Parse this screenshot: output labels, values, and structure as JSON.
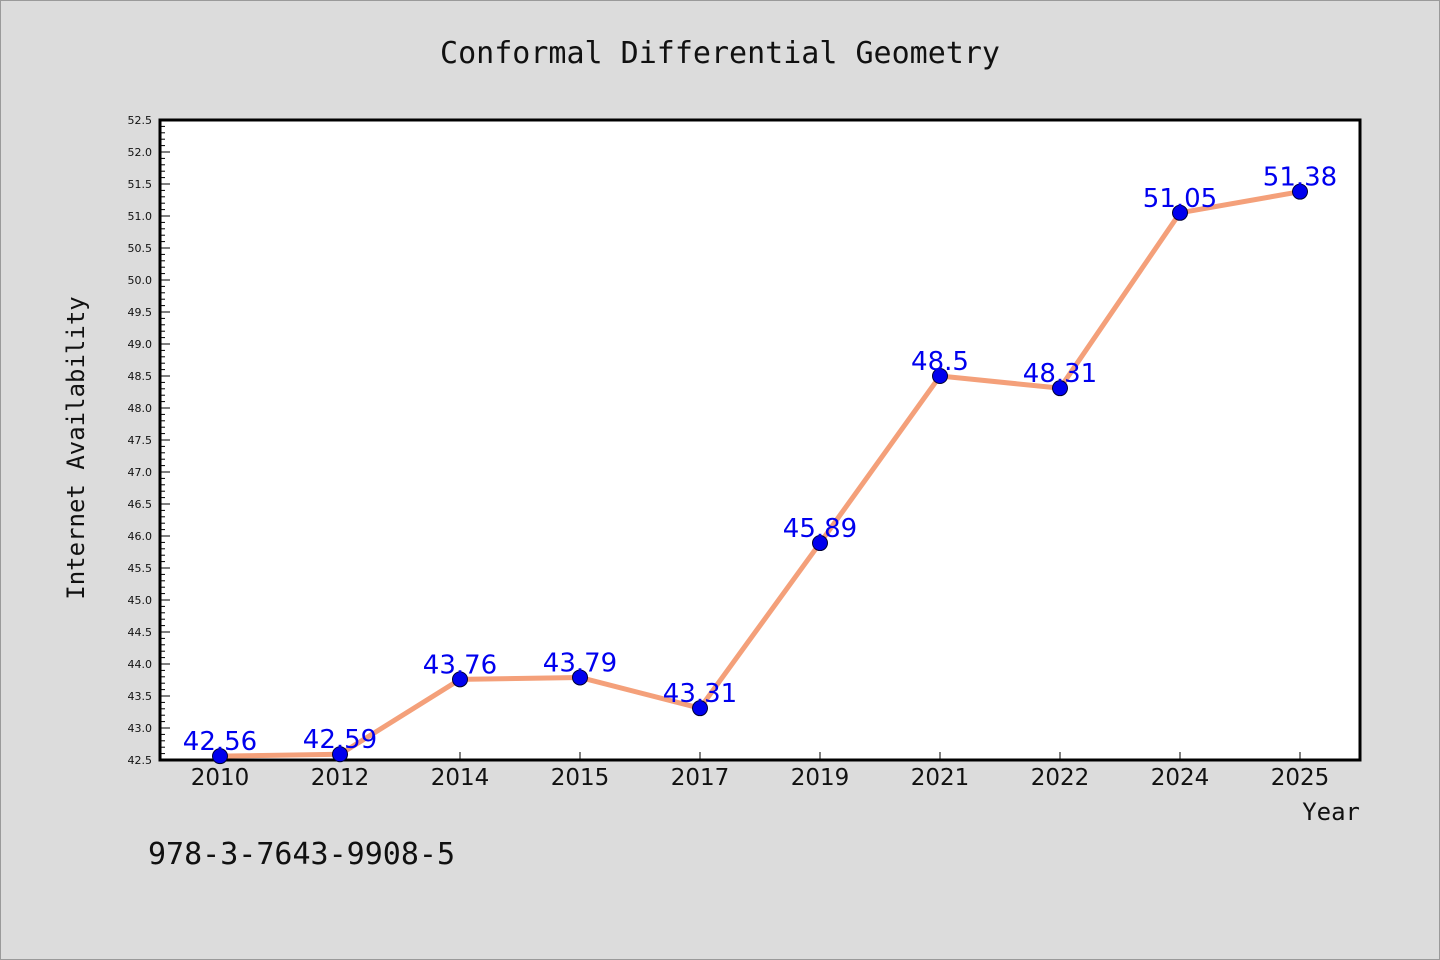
{
  "colors": {
    "background": "#dcdcdc",
    "plot_background": "#ffffff",
    "line": "#f4a07a",
    "marker": "#0000ee",
    "data_label": "#0000ee",
    "axes": "#000000"
  },
  "footer": {
    "isbn": "978-3-7643-9908-5"
  },
  "chart_data": {
    "type": "line",
    "title": "Conformal Differential Geometry",
    "xlabel": "Year",
    "ylabel": "Internet Availability",
    "categories": [
      "2010",
      "2012",
      "2014",
      "2015",
      "2017",
      "2019",
      "2021",
      "2022",
      "2024",
      "2025"
    ],
    "series": [
      {
        "values": [
          42.56,
          42.59,
          43.76,
          43.79,
          43.31,
          45.89,
          48.5,
          48.31,
          51.05,
          51.38
        ],
        "labels": [
          "42.56",
          "42.59",
          "43.76",
          "43.79",
          "43.31",
          "45.89",
          "48.5",
          "48.31",
          "51.05",
          "51.38"
        ]
      }
    ],
    "ylim": [
      42.5,
      52.5
    ],
    "yticks": [
      "42.5",
      "43.0",
      "43.5",
      "44.0",
      "44.5",
      "45.0",
      "45.5",
      "46.0",
      "46.5",
      "47.0",
      "47.5",
      "48.0",
      "48.5",
      "49.0",
      "49.5",
      "50.0",
      "50.5",
      "51.0",
      "51.5",
      "52.0",
      "52.5"
    ],
    "grid": false,
    "legend": "none"
  }
}
